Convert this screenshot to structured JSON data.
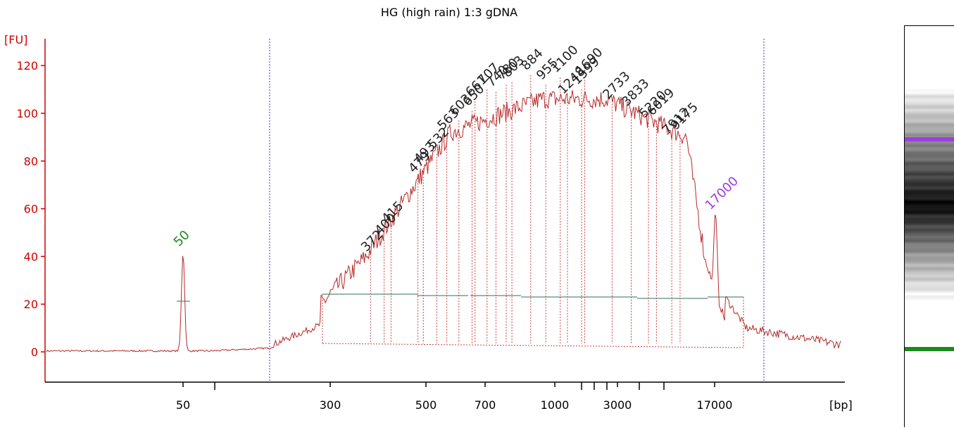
{
  "title": "HG (high rain) 1:3 gDNA",
  "colors": {
    "trace": "#b52a2a",
    "axis": "#d10000",
    "fill_lines": "#c84040",
    "baseline": "#2f6f5f",
    "dotted_vline": "#3a3ab8",
    "lower_marker": "#1a8a1a",
    "upper_marker": "#9b3fe0",
    "peak_label": "#222222"
  },
  "chart_data": {
    "type": "line",
    "title": "HG (high rain) 1:3 gDNA",
    "ylabel": "[FU]",
    "xlabel": "[bp]",
    "ylim": [
      -10,
      125
    ],
    "yticks": [
      0,
      20,
      40,
      60,
      80,
      100,
      120
    ],
    "xtick_labels": [
      "50",
      "300",
      "500",
      "700",
      "1000",
      "3000",
      "17000"
    ],
    "lower_marker": {
      "label": "50",
      "size_bp": 50,
      "height_fu": 41
    },
    "upper_marker": {
      "label": "17000",
      "size_bp": 17000,
      "height_fu": 57
    },
    "peaks": [
      {
        "label": "372",
        "bp": 372,
        "fu": 40
      },
      {
        "label": "400",
        "bp": 400,
        "fu": 47
      },
      {
        "label": "415",
        "bp": 415,
        "fu": 52
      },
      {
        "label": "479",
        "bp": 479,
        "fu": 73
      },
      {
        "label": "493",
        "bp": 493,
        "fu": 77
      },
      {
        "label": "532",
        "bp": 532,
        "fu": 83
      },
      {
        "label": "563",
        "bp": 563,
        "fu": 91
      },
      {
        "label": "603",
        "bp": 603,
        "fu": 97
      },
      {
        "label": "650",
        "bp": 650,
        "fu": 101
      },
      {
        "label": "661",
        "bp": 661,
        "fu": 105
      },
      {
        "label": "707",
        "bp": 707,
        "fu": 110
      },
      {
        "label": "740",
        "bp": 740,
        "fu": 109
      },
      {
        "label": "780",
        "bp": 780,
        "fu": 112
      },
      {
        "label": "803",
        "bp": 803,
        "fu": 113
      },
      {
        "label": "884",
        "bp": 884,
        "fu": 116
      },
      {
        "label": "955",
        "bp": 955,
        "fu": 112
      },
      {
        "label": "1100",
        "bp": 1100,
        "fu": 115
      },
      {
        "label": "1248",
        "bp": 1248,
        "fu": 106
      },
      {
        "label": "1599",
        "bp": 1599,
        "fu": 110
      },
      {
        "label": "1690",
        "bp": 1690,
        "fu": 114
      },
      {
        "label": "2733",
        "bp": 2733,
        "fu": 104
      },
      {
        "label": "3833",
        "bp": 3833,
        "fu": 101
      },
      {
        "label": "5220",
        "bp": 5220,
        "fu": 96
      },
      {
        "label": "6019",
        "bp": 6019,
        "fu": 97
      },
      {
        "label": "7912",
        "bp": 7912,
        "fu": 89
      },
      {
        "label": "9175",
        "bp": 9175,
        "fu": 91
      }
    ]
  }
}
